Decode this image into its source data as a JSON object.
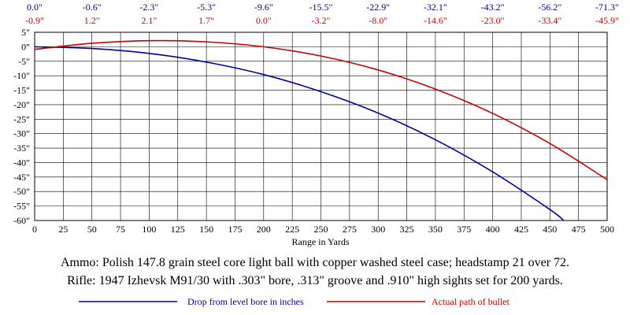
{
  "chart_data": {
    "type": "line",
    "xlabel": "Range in Yards",
    "ylabel": "",
    "xlim": [
      0,
      500
    ],
    "ylim": [
      -60,
      5
    ],
    "xticks": [
      0,
      25,
      50,
      75,
      100,
      125,
      150,
      175,
      200,
      225,
      250,
      275,
      300,
      325,
      350,
      375,
      400,
      425,
      450,
      475,
      500
    ],
    "yticks": [
      5,
      0,
      -5,
      -10,
      -15,
      -20,
      -25,
      -30,
      -35,
      -40,
      -45,
      -50,
      -55,
      -60
    ],
    "ytick_labels": [
      "5\"",
      "0\"",
      "-5\"",
      "-10\"",
      "-15\"",
      "-20\"",
      "-25\"",
      "-30\"",
      "-35\"",
      "-40\"",
      "-45\"",
      "-50\"",
      "-55\"",
      "-60\""
    ],
    "grid": true,
    "top_row_positions": [
      0,
      50,
      100,
      150,
      200,
      250,
      300,
      350,
      400,
      450,
      500
    ],
    "top_row_drop": [
      "0.0\"",
      "-0.6\"",
      "-2.3\"",
      "-5.3\"",
      "-9.6\"",
      "-15.5\"",
      "-22.9\"",
      "-32.1\"",
      "-43.2\"",
      "-56.2\"",
      "-71.3\""
    ],
    "top_row_path": [
      "-0.9\"",
      "1.2\"",
      "2.1\"",
      "1.7\"",
      "0.0\"",
      "-3.2\"",
      "-8.0\"",
      "-14.6\"",
      "-23.0\"",
      "-33.4\"",
      "-45.9\""
    ],
    "series": [
      {
        "name": "Drop from level bore in inches",
        "color": "#0000AA",
        "x": [
          0,
          50,
          100,
          150,
          200,
          250,
          300,
          350,
          400,
          450,
          462
        ],
        "y": [
          0.0,
          -0.6,
          -2.3,
          -5.3,
          -9.6,
          -15.5,
          -22.9,
          -32.1,
          -43.2,
          -56.2,
          -60
        ]
      },
      {
        "name": "Actual path of bullet",
        "color": "#CC0000",
        "x": [
          0,
          50,
          100,
          150,
          200,
          250,
          300,
          350,
          400,
          450,
          500
        ],
        "y": [
          -0.9,
          1.2,
          2.1,
          1.7,
          0.0,
          -3.2,
          -8.0,
          -14.6,
          -23.0,
          -33.4,
          -45.9
        ]
      }
    ],
    "legend_placement": "bottom"
  },
  "caption": {
    "line1": "Ammo:  Polish 147.8 grain steel core light ball with copper washed steel case; headstamp 21 over 72.",
    "line2": "Rifle:  1947 Izhevsk M91/30 with .303\" bore, .313\" groove and .910\" high sights set for 200 yards."
  }
}
